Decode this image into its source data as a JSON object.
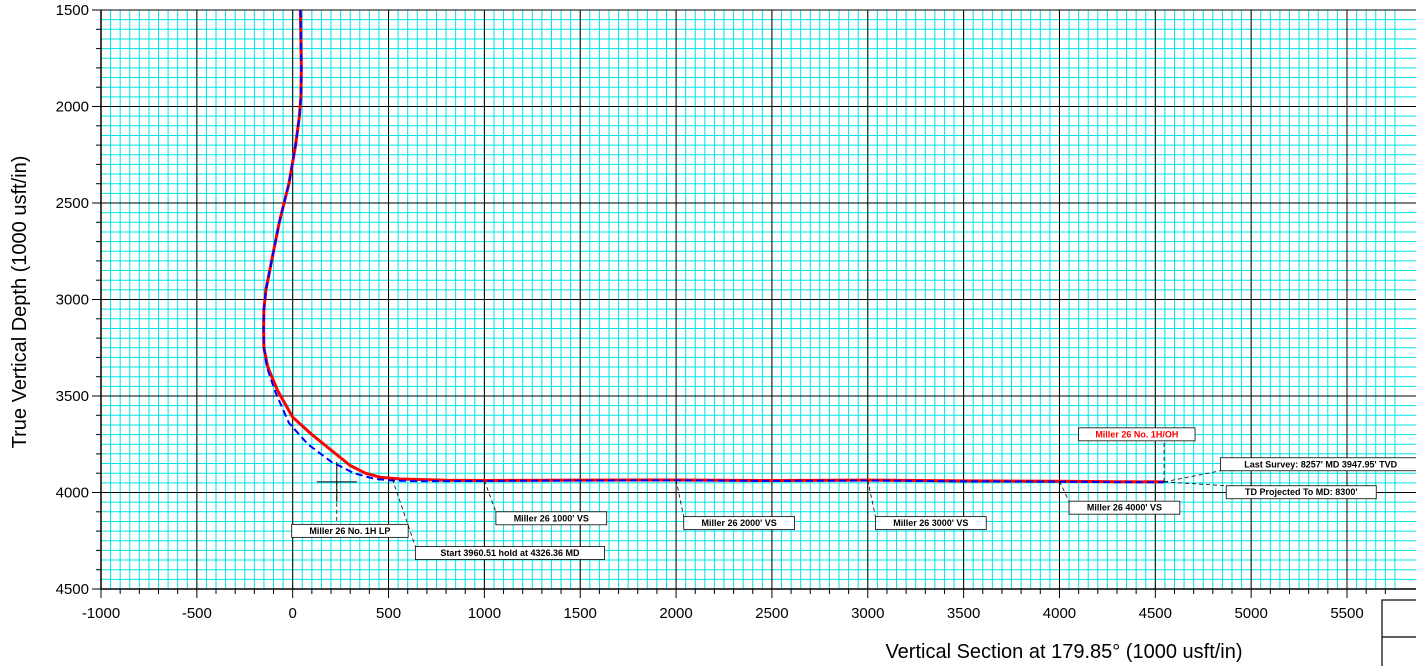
{
  "chart_data": {
    "type": "line",
    "title": "",
    "xlabel": "Vertical Section at 179.85° (1000 usft/in)",
    "ylabel": "True Vertical Depth (1000 usft/in)",
    "xlim": [
      -1000,
      5750
    ],
    "ylim": [
      1500,
      4500
    ],
    "y_inverted": true,
    "grid": true,
    "x_ticks": [
      -1000,
      -500,
      0,
      500,
      1000,
      1500,
      2000,
      2500,
      3000,
      3500,
      4000,
      4500,
      5000,
      5500
    ],
    "y_ticks": [
      1500,
      2000,
      2500,
      3000,
      3500,
      4000,
      4500
    ],
    "colors": {
      "grid_minor": "#00e5e5",
      "grid_major": "#000000",
      "actual": "#ff0000",
      "plan": "#0000ff"
    },
    "series": [
      {
        "style": "solid",
        "color": "#ff0000",
        "x": [
          40,
          42,
          45,
          43,
          35,
          15,
          -20,
          -70,
          -110,
          -140,
          -150,
          -152,
          -150,
          -130,
          -80,
          0,
          100,
          200,
          300,
          380,
          460,
          560,
          800,
          1000,
          1500,
          2000,
          2500,
          3000,
          3500,
          4000,
          4300,
          4546
        ],
        "y": [
          1500,
          1600,
          1800,
          1950,
          2050,
          2200,
          2400,
          2600,
          2800,
          2950,
          3050,
          3150,
          3250,
          3350,
          3470,
          3610,
          3700,
          3780,
          3860,
          3900,
          3922,
          3930,
          3937,
          3938,
          3936,
          3935,
          3938,
          3936,
          3940,
          3942,
          3944,
          3945
        ]
      },
      {
        "style": "dashed",
        "color": "#0000ff",
        "x": [
          40,
          42,
          45,
          43,
          35,
          15,
          -20,
          -70,
          -110,
          -140,
          -150,
          -152,
          -150,
          -135,
          -90,
          -20,
          80,
          200,
          320,
          430,
          520,
          620,
          800,
          1000,
          1500,
          2000,
          2500,
          3000,
          3500,
          4000,
          4300,
          4546
        ],
        "y": [
          1500,
          1600,
          1800,
          1950,
          2050,
          2200,
          2400,
          2600,
          2800,
          2950,
          3050,
          3150,
          3250,
          3350,
          3480,
          3640,
          3750,
          3840,
          3900,
          3930,
          3938,
          3941,
          3941,
          3940,
          3938,
          3937,
          3940,
          3938,
          3942,
          3944,
          3946,
          3947
        ]
      }
    ],
    "annotations": [
      {
        "text": "Miller 26 No. 1H/OH",
        "boxed": true,
        "red": true,
        "anchor": [
          4546,
          3945
        ],
        "box": [
          4100,
          3665
        ]
      },
      {
        "text": "Last Survey: 8257' MD 3947.95' TVD",
        "boxed": true,
        "red": false,
        "anchor": [
          4546,
          3945
        ],
        "box": [
          4840,
          3820
        ]
      },
      {
        "text": "TD Projected To MD: 8300'",
        "boxed": true,
        "red": false,
        "anchor": [
          4546,
          3945
        ],
        "box": [
          4870,
          3965
        ]
      },
      {
        "text": "Miller 26 4000' VS",
        "boxed": true,
        "red": false,
        "anchor": [
          4000,
          3942
        ],
        "box": [
          4050,
          4045
        ]
      },
      {
        "text": "Miller 26 3000' VS",
        "boxed": true,
        "red": false,
        "anchor": [
          3000,
          3936
        ],
        "box": [
          3040,
          4125
        ]
      },
      {
        "text": "Miller 26 2000' VS",
        "boxed": true,
        "red": false,
        "anchor": [
          2000,
          3935
        ],
        "box": [
          2040,
          4125
        ]
      },
      {
        "text": "Miller 26 1000' VS",
        "boxed": true,
        "red": false,
        "anchor": [
          1000,
          3938
        ],
        "box": [
          1060,
          4100
        ]
      },
      {
        "text": "Miller 26 No. 1H LP",
        "boxed": true,
        "red": false,
        "anchor": [
          230,
          3945
        ],
        "box": [
          -5,
          4165
        ]
      },
      {
        "text": "Start 3960.51 hold at 4326.36 MD",
        "boxed": true,
        "red": false,
        "anchor": [
          520,
          3930
        ],
        "box": [
          640,
          4280
        ]
      }
    ],
    "cross_marker": [
      230,
      3945
    ]
  }
}
